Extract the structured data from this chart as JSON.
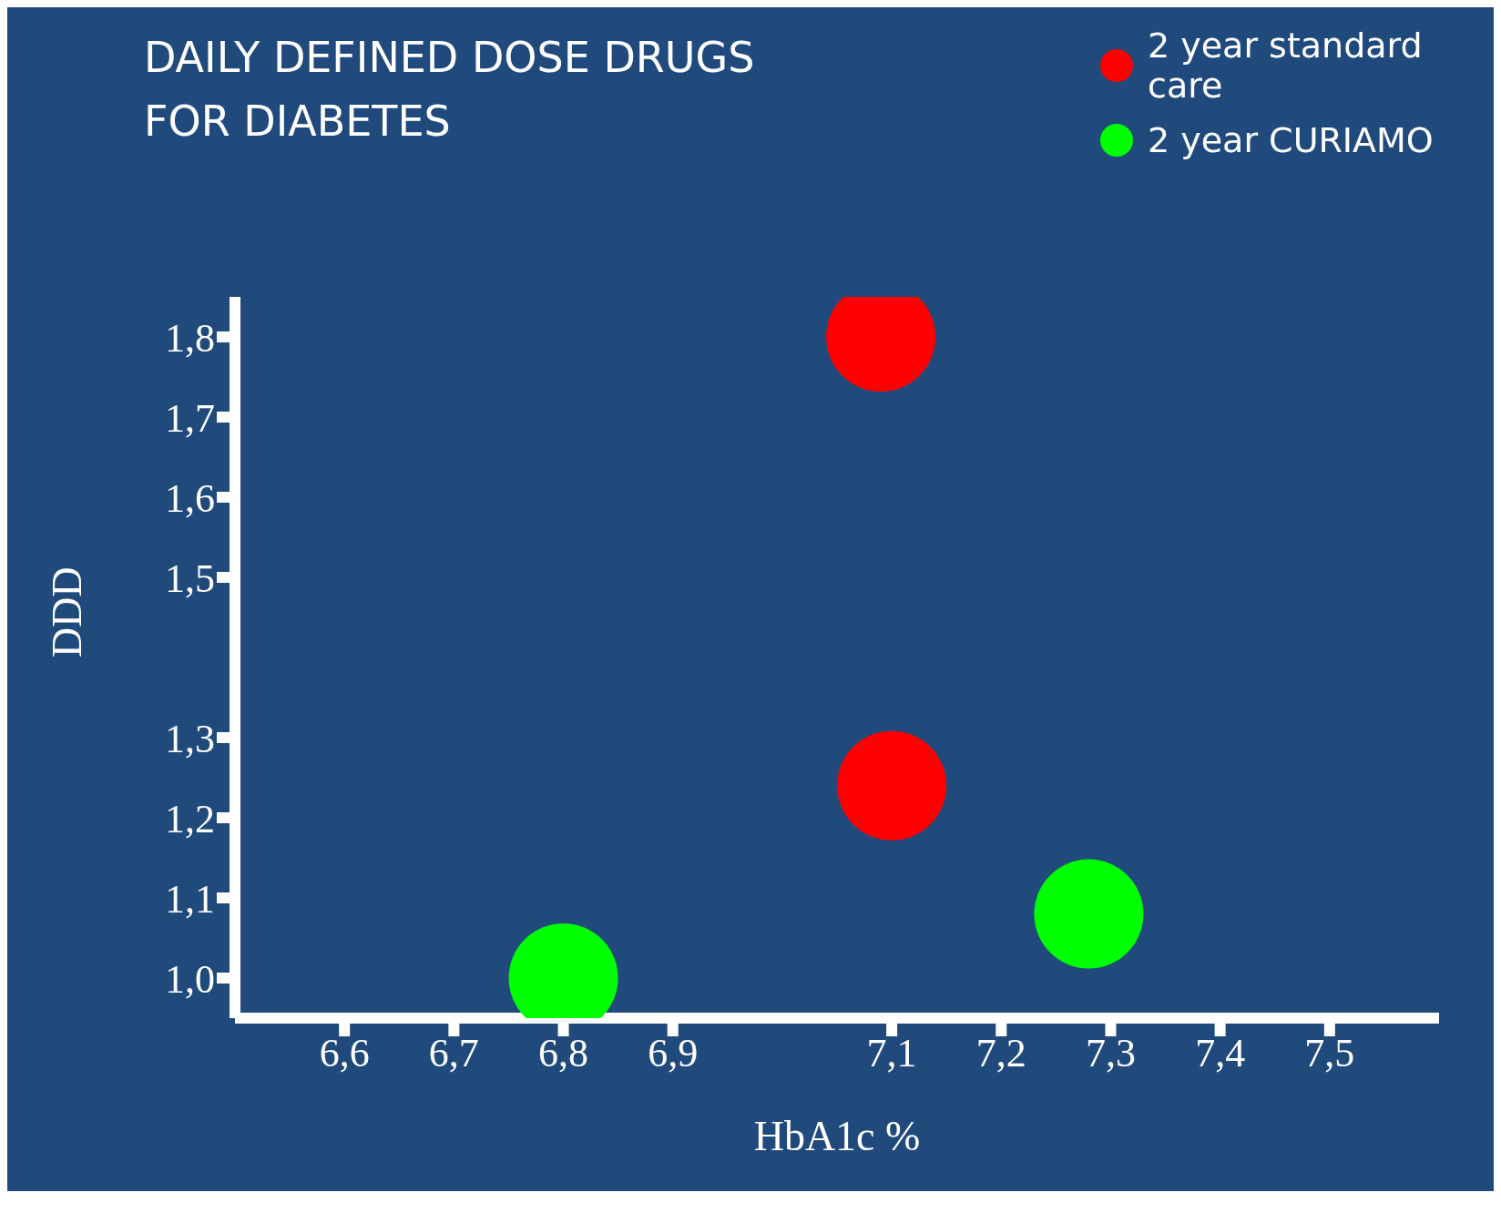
{
  "chart_data": {
    "type": "scatter",
    "title": "DAILY DEFINED DOSE DRUGS FOR DIABETES",
    "xlabel": "HbA1c  %",
    "ylabel": "DDD",
    "xlim": [
      6.5,
      7.6
    ],
    "ylim": [
      0.95,
      1.85
    ],
    "xticks": [
      {
        "value": 6.6,
        "label": "6,6"
      },
      {
        "value": 6.7,
        "label": "6,7"
      },
      {
        "value": 6.8,
        "label": "6,8"
      },
      {
        "value": 6.9,
        "label": "6,9"
      },
      {
        "value": 7.1,
        "label": "7,1"
      },
      {
        "value": 7.2,
        "label": "7,2"
      },
      {
        "value": 7.3,
        "label": "7,3"
      },
      {
        "value": 7.4,
        "label": "7,4"
      },
      {
        "value": 7.5,
        "label": "7,5"
      }
    ],
    "yticks": [
      {
        "value": 1.0,
        "label": "1,0"
      },
      {
        "value": 1.1,
        "label": "1,1"
      },
      {
        "value": 1.2,
        "label": "1,2"
      },
      {
        "value": 1.3,
        "label": "1,3"
      },
      {
        "value": 1.5,
        "label": "1,5"
      },
      {
        "value": 1.6,
        "label": "1,6"
      },
      {
        "value": 1.7,
        "label": "1,7"
      },
      {
        "value": 1.8,
        "label": "1,8"
      }
    ],
    "series": [
      {
        "name": "2 year standard care",
        "color": "#ff0000",
        "x": [
          7.09,
          7.1
        ],
        "values": [
          1.8,
          1.24
        ]
      },
      {
        "name": "2 year CURIAMO",
        "color": "#00ff00",
        "x": [
          7.28,
          6.8
        ],
        "values": [
          1.08,
          1.0
        ]
      }
    ],
    "legend": "top right",
    "grid": false,
    "marker": "circle"
  }
}
